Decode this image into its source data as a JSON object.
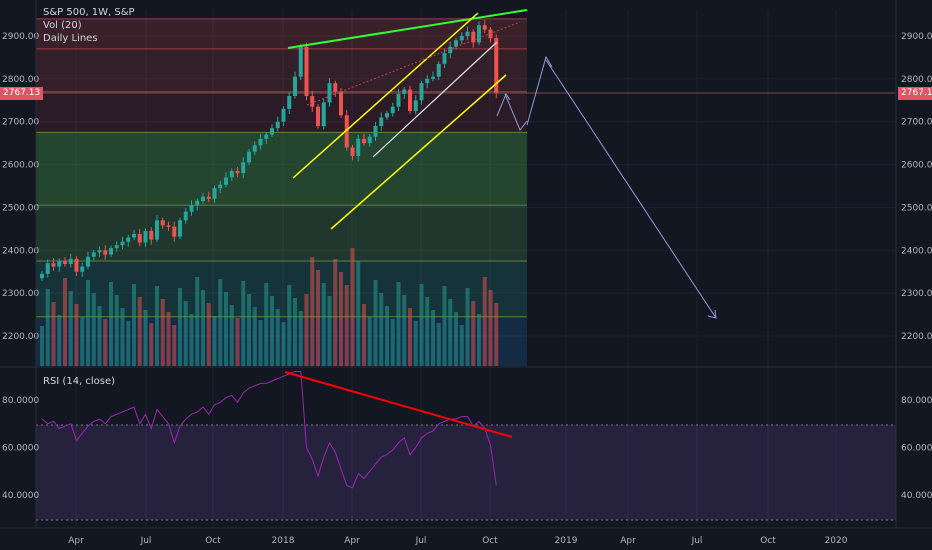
{
  "header": {
    "symbol_line": "S&P 500, 1W, S&P",
    "indicator_1": "Vol (20)",
    "indicator_2": "Daily Lines"
  },
  "rsi": {
    "label": "RSI (14, close)",
    "ticks": [
      "80.0000",
      "60.0000",
      "40.0000"
    ],
    "values": [
      80,
      60,
      40
    ]
  },
  "last_price": "2767.13",
  "colors": {
    "up": "#26a69a",
    "down": "#ef5350",
    "background": "#131722",
    "channel_yellow": "#ffff00",
    "top_line_green": "#33ff33",
    "rsi_line": "#9c27b0",
    "rsi_divergence": "#ff0000"
  },
  "chart_data": {
    "type": "candlestick",
    "price_ticks": [
      2900,
      2800,
      2700,
      2600,
      2500,
      2400,
      2300,
      2200
    ],
    "price_tick_labels": [
      "2900.00",
      "2800.00",
      "2700.00",
      "2600.00",
      "2500.00",
      "2400.00",
      "2300.00",
      "2200.00"
    ],
    "x_labels": [
      "Apr",
      "Jul",
      "Oct",
      "2018",
      "Apr",
      "Jul",
      "Oct",
      "2019",
      "Apr",
      "Jul",
      "Oct",
      "2020"
    ],
    "ylim": [
      2140,
      2960
    ],
    "fib_levels": [
      2940,
      2870,
      2770,
      2675,
      2505,
      2375,
      2245
    ],
    "closes": [
      2345,
      2370,
      2362,
      2375,
      2368,
      2380,
      2350,
      2362,
      2385,
      2395,
      2400,
      2390,
      2405,
      2412,
      2420,
      2430,
      2438,
      2418,
      2445,
      2425,
      2470,
      2458,
      2455,
      2432,
      2470,
      2490,
      2505,
      2515,
      2525,
      2520,
      2545,
      2553,
      2570,
      2585,
      2580,
      2605,
      2630,
      2645,
      2660,
      2670,
      2685,
      2700,
      2730,
      2760,
      2805,
      2875,
      2760,
      2735,
      2690,
      2745,
      2790,
      2770,
      2715,
      2640,
      2620,
      2660,
      2650,
      2665,
      2690,
      2710,
      2720,
      2735,
      2765,
      2775,
      2725,
      2750,
      2790,
      2800,
      2805,
      2835,
      2860,
      2875,
      2890,
      2900,
      2910,
      2885,
      2925,
      2915,
      2895,
      2767
    ],
    "rsi_values": [
      72,
      70,
      71,
      68,
      69,
      70,
      63,
      66,
      69,
      71,
      72,
      70,
      73,
      74,
      75,
      76,
      77,
      70,
      74,
      68,
      76,
      73,
      70,
      62,
      69,
      72,
      74,
      75,
      77,
      74,
      78,
      79,
      81,
      82,
      79,
      83,
      85,
      86,
      87,
      87,
      88,
      89,
      90,
      91,
      92,
      92,
      60,
      55,
      48,
      56,
      62,
      58,
      51,
      44,
      43,
      49,
      47,
      50,
      53,
      56,
      57,
      59,
      62,
      64,
      57,
      60,
      64,
      66,
      67,
      70,
      71,
      72,
      72,
      73,
      73,
      69,
      71,
      68,
      61,
      44
    ],
    "annotations": [
      "green resistance line",
      "yellow rising channel",
      "white channel mid-line",
      "projected drop arrows",
      "RSI bearish divergence line"
    ]
  }
}
